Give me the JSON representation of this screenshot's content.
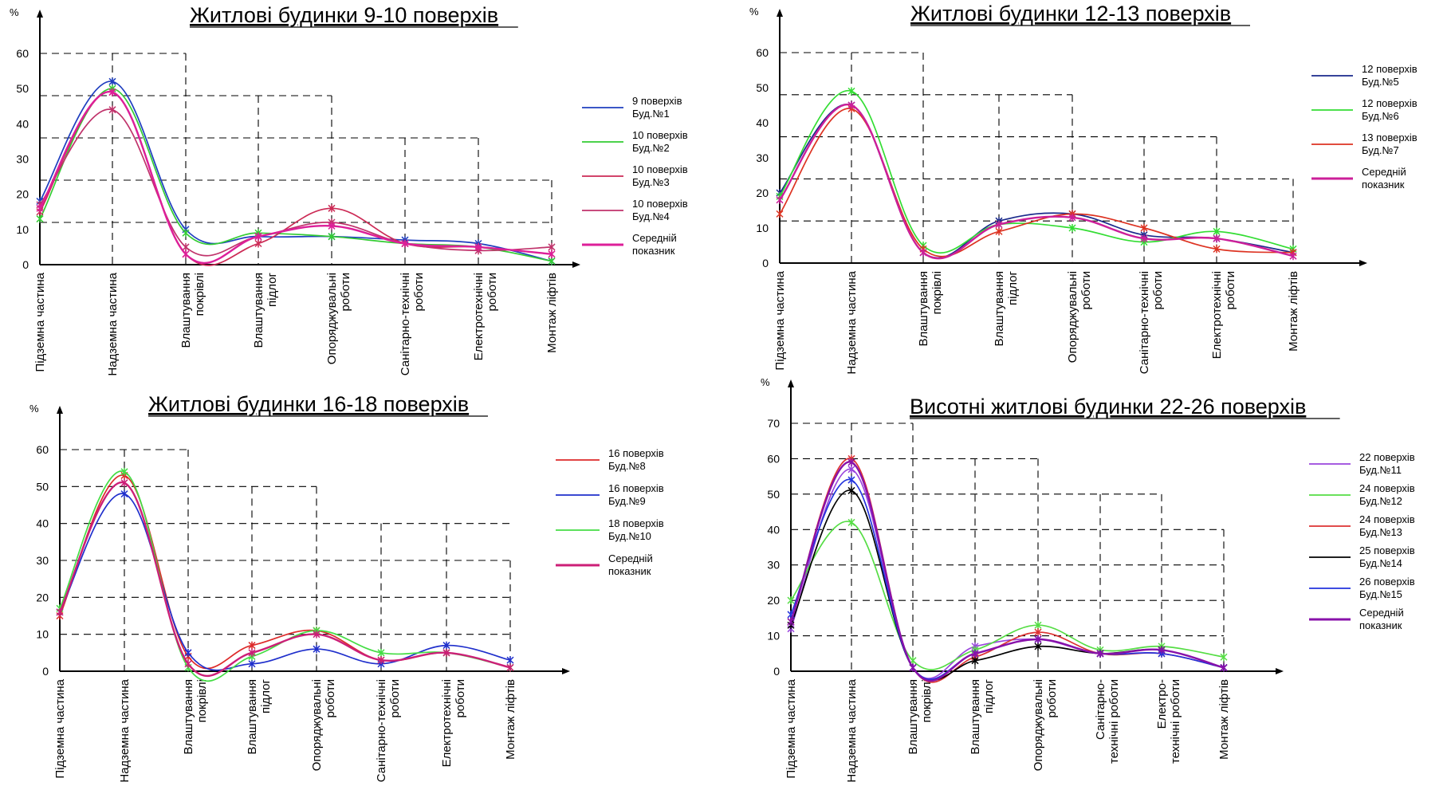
{
  "chart_data": [
    {
      "type": "line",
      "title": "Житлові будинки 9-10 поверхів",
      "ylabel": "%",
      "ylim": [
        0,
        60
      ],
      "yticks": [
        0,
        10,
        20,
        30,
        40,
        50,
        60
      ],
      "categories": [
        [
          "Підземна частина"
        ],
        [
          "Надземна частина"
        ],
        [
          "Влаштування",
          "покрівлі"
        ],
        [
          "Влаштування",
          "підлог"
        ],
        [
          "Опоряджувальні",
          "роботи"
        ],
        [
          "Санітарно-технічні",
          "роботи"
        ],
        [
          "Електротехнічні",
          "роботи"
        ],
        [
          "Монтаж ліфтів"
        ]
      ],
      "grid_steps": [
        60,
        48,
        36,
        24,
        12
      ],
      "legend_position": "right",
      "series": [
        {
          "name": [
            "9 поверхів",
            "Буд.№1"
          ],
          "color": "#1f3fbf",
          "values": [
            18,
            52,
            10,
            8,
            8,
            7,
            6,
            1
          ]
        },
        {
          "name": [
            "10 поверхів",
            "Буд.№2"
          ],
          "color": "#33cc33",
          "values": [
            13,
            50,
            9,
            9,
            8,
            6,
            5,
            1
          ]
        },
        {
          "name": [
            "10 поверхів",
            "Буд.№3"
          ],
          "color": "#cc2a55",
          "values": [
            15,
            49,
            3,
            6,
            16,
            6,
            5,
            3
          ]
        },
        {
          "name": [
            "10 поверхів",
            "Буд.№4"
          ],
          "color": "#c0336b",
          "values": [
            17,
            44,
            5,
            8,
            12,
            6,
            4,
            5
          ]
        },
        {
          "name": [
            "Середній",
            "показник"
          ],
          "color": "#dd1f99",
          "values": [
            16,
            49,
            3,
            8,
            11,
            6,
            5,
            3
          ]
        }
      ]
    },
    {
      "type": "line",
      "title": "Житлові будинки 12-13 поверхів",
      "ylabel": "%",
      "ylim": [
        0,
        60
      ],
      "yticks": [
        0,
        10,
        20,
        30,
        40,
        50,
        60
      ],
      "categories": [
        [
          "Підземна частина"
        ],
        [
          "Надземна частина"
        ],
        [
          "Влаштування",
          "покрівлі"
        ],
        [
          "Влаштування",
          "підлог"
        ],
        [
          "Опоряджувальні",
          "роботи"
        ],
        [
          "Санітарно-технічні",
          "роботи"
        ],
        [
          "Електротехнічні",
          "роботи"
        ],
        [
          "Монтаж ліфтів"
        ]
      ],
      "grid_steps": [
        60,
        48,
        36,
        24,
        12
      ],
      "legend_position": "right",
      "series": [
        {
          "name": [
            "12 поверхів",
            "Буд.№5"
          ],
          "color": "#1a2a8c",
          "values": [
            20,
            45,
            3,
            12,
            14,
            8,
            7,
            3
          ]
        },
        {
          "name": [
            "12 поверхів",
            "Буд.№6"
          ],
          "color": "#33dd33",
          "values": [
            19,
            49,
            5,
            11,
            10,
            6,
            9,
            4
          ]
        },
        {
          "name": [
            "13 поверхів",
            "Буд.№7"
          ],
          "color": "#dd3322",
          "values": [
            14,
            44,
            4,
            9,
            14,
            10,
            4,
            3
          ]
        },
        {
          "name": [
            "Середній",
            "показник"
          ],
          "color": "#cc1f99",
          "values": [
            18,
            45,
            3,
            11,
            13,
            7,
            7,
            2
          ]
        }
      ]
    },
    {
      "type": "line",
      "title": "Житлові будинки 16-18 поверхів",
      "ylabel": "%",
      "ylim": [
        0,
        60
      ],
      "yticks": [
        0,
        10,
        20,
        30,
        40,
        50,
        60
      ],
      "categories": [
        [
          "Підземна частина"
        ],
        [
          "Надземна частина"
        ],
        [
          "Влаштування",
          "покрівлі"
        ],
        [
          "Влаштування",
          "підлог"
        ],
        [
          "Опоряджувальні",
          "роботи"
        ],
        [
          "Санітарно-технічні",
          "роботи"
        ],
        [
          "Електротехнічні",
          "роботи"
        ],
        [
          "Монтаж ліфтів"
        ]
      ],
      "grid_steps": [
        60,
        50,
        40,
        30,
        20,
        10
      ],
      "legend_position": "right",
      "series": [
        {
          "name": [
            "16 поверхів",
            "Буд.№8"
          ],
          "color": "#dd2a2a",
          "values": [
            15,
            53,
            4,
            7,
            11,
            3,
            5,
            1
          ]
        },
        {
          "name": [
            "16 поверхів",
            "Буд.№9"
          ],
          "color": "#1f2fcc",
          "values": [
            16,
            48,
            5,
            2,
            6,
            2,
            7,
            3
          ]
        },
        {
          "name": [
            "18 поверхів",
            "Буд.№10"
          ],
          "color": "#44dd44",
          "values": [
            17,
            54,
            1,
            4,
            11,
            5,
            5,
            1
          ]
        },
        {
          "name": [
            "Середній",
            "показник"
          ],
          "color": "#cc1f77",
          "values": [
            16,
            51,
            2,
            5,
            10,
            3,
            5,
            1
          ]
        }
      ]
    },
    {
      "type": "line",
      "title": "Висотні житлові будинки 22-26 поверхів",
      "ylabel": "%",
      "ylim": [
        0,
        70
      ],
      "yticks": [
        0,
        10,
        20,
        30,
        40,
        50,
        60,
        70
      ],
      "categories": [
        [
          "Підземна частина"
        ],
        [
          "Надземна частина"
        ],
        [
          "Влаштування",
          "покрівлі"
        ],
        [
          "Влаштування",
          "підлог"
        ],
        [
          "Опоряджувальні",
          "роботи"
        ],
        [
          "Санітарно-",
          "технічні роботи"
        ],
        [
          "Електро-",
          "технічні роботи"
        ],
        [
          "Монтаж ліфтів"
        ]
      ],
      "grid_steps": [
        70,
        60,
        50,
        40,
        30,
        20,
        10
      ],
      "legend_position": "right",
      "series": [
        {
          "name": [
            "22 поверхів",
            "Буд.№11"
          ],
          "color": "#9944dd",
          "values": [
            12,
            57,
            1,
            7,
            9,
            5,
            6,
            1
          ]
        },
        {
          "name": [
            "24 поверхів",
            "Буд.№12"
          ],
          "color": "#55dd44",
          "values": [
            20,
            42,
            3,
            6,
            13,
            6,
            7,
            4
          ]
        },
        {
          "name": [
            "24 поверхів",
            "Буд.№13"
          ],
          "color": "#dd3333",
          "values": [
            14,
            60,
            1,
            4,
            11,
            5,
            5,
            1
          ]
        },
        {
          "name": [
            "25 поверхів",
            "Буд.№14"
          ],
          "color": "#000000",
          "values": [
            13,
            51,
            1,
            3,
            7,
            5,
            6,
            1
          ]
        },
        {
          "name": [
            "26 поверхів",
            "Буд.№15"
          ],
          "color": "#2233dd",
          "values": [
            16,
            54,
            1,
            5,
            9,
            5,
            5,
            1
          ]
        },
        {
          "name": [
            "Середній",
            "показник"
          ],
          "color": "#8811aa",
          "values": [
            14,
            59,
            1,
            5,
            9,
            5,
            6,
            1
          ]
        }
      ]
    }
  ]
}
